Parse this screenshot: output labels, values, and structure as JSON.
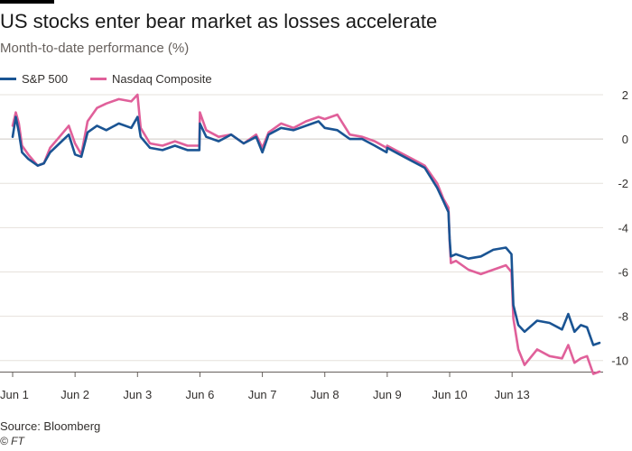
{
  "header": {
    "title": "US stocks enter bear market as losses accelerate",
    "subtitle": "Month-to-date performance (%)"
  },
  "footer": {
    "source": "Source: Bloomberg",
    "copyright": "© FT"
  },
  "colors": {
    "sp500": "#1a5493",
    "nasdaq": "#e0609a",
    "grid": "#e6e1dc",
    "axis_text": "#33302e"
  },
  "chart_data": {
    "type": "line",
    "title": "US stocks enter bear market as losses accelerate",
    "subtitle": "Month-to-date performance (%)",
    "xlabel": "",
    "ylabel": "",
    "ylim": [
      -10.5,
      2
    ],
    "yticks": [
      2,
      0,
      -2,
      -4,
      -6,
      -8,
      -10
    ],
    "grid": true,
    "legend_position": "top-left",
    "xlim": [
      0,
      9.4
    ],
    "xticks": [
      {
        "x": 0,
        "label": "Jun 1"
      },
      {
        "x": 1,
        "label": "Jun 2"
      },
      {
        "x": 2,
        "label": "Jun 3"
      },
      {
        "x": 3,
        "label": "Jun 6"
      },
      {
        "x": 4,
        "label": "Jun 7"
      },
      {
        "x": 5,
        "label": "Jun 8"
      },
      {
        "x": 6,
        "label": "Jun 9"
      },
      {
        "x": 7,
        "label": "Jun 10"
      },
      {
        "x": 8,
        "label": "Jun 13"
      }
    ],
    "series": [
      {
        "name": "S&P 500",
        "color": "#1a5493",
        "x": [
          0,
          0.05,
          0.1,
          0.15,
          0.25,
          0.4,
          0.5,
          0.6,
          0.75,
          0.9,
          1.0,
          1.1,
          1.2,
          1.35,
          1.5,
          1.7,
          1.9,
          2.0,
          2.05,
          2.2,
          2.4,
          2.6,
          2.8,
          2.99,
          3.0,
          3.1,
          3.3,
          3.5,
          3.7,
          3.9,
          4.0,
          4.1,
          4.3,
          4.5,
          4.7,
          4.9,
          5.0,
          5.2,
          5.4,
          5.6,
          5.8,
          5.99,
          6.0,
          6.2,
          6.4,
          6.6,
          6.8,
          6.9,
          6.98,
          7.0,
          7.02,
          7.1,
          7.3,
          7.5,
          7.7,
          7.9,
          7.99,
          8.02,
          8.1,
          8.2,
          8.4,
          8.6,
          8.8,
          8.9,
          9.0,
          9.1,
          9.2,
          9.3,
          9.4
        ],
        "values": [
          0.1,
          1.0,
          0.3,
          -0.6,
          -0.9,
          -1.2,
          -1.1,
          -0.6,
          -0.2,
          0.2,
          -0.7,
          -0.8,
          0.3,
          0.6,
          0.4,
          0.7,
          0.5,
          1.0,
          0.1,
          -0.4,
          -0.5,
          -0.3,
          -0.5,
          -0.5,
          0.7,
          0.1,
          -0.1,
          0.2,
          -0.2,
          0.1,
          -0.6,
          0.2,
          0.5,
          0.4,
          0.6,
          0.8,
          0.5,
          0.4,
          0.0,
          0.0,
          -0.3,
          -0.6,
          -0.4,
          -0.7,
          -1.0,
          -1.3,
          -2.2,
          -2.8,
          -3.3,
          -4.5,
          -5.3,
          -5.2,
          -5.4,
          -5.3,
          -5.0,
          -4.9,
          -5.2,
          -7.5,
          -8.4,
          -8.7,
          -8.2,
          -8.3,
          -8.6,
          -7.9,
          -8.7,
          -8.4,
          -8.5,
          -9.3,
          -9.2
        ]
      },
      {
        "name": "Nasdaq Composite",
        "color": "#e0609a",
        "x": [
          0,
          0.05,
          0.1,
          0.15,
          0.25,
          0.4,
          0.5,
          0.6,
          0.75,
          0.9,
          1.0,
          1.1,
          1.2,
          1.35,
          1.5,
          1.7,
          1.9,
          2.0,
          2.05,
          2.2,
          2.4,
          2.6,
          2.8,
          2.99,
          3.0,
          3.1,
          3.3,
          3.5,
          3.7,
          3.9,
          4.0,
          4.1,
          4.3,
          4.5,
          4.7,
          4.9,
          5.0,
          5.2,
          5.4,
          5.6,
          5.8,
          5.99,
          6.0,
          6.2,
          6.4,
          6.6,
          6.8,
          6.9,
          6.98,
          7.0,
          7.02,
          7.1,
          7.3,
          7.5,
          7.7,
          7.9,
          7.99,
          8.02,
          8.1,
          8.2,
          8.4,
          8.6,
          8.8,
          8.9,
          9.0,
          9.1,
          9.2,
          9.3,
          9.4
        ],
        "values": [
          0.6,
          1.2,
          0.7,
          -0.3,
          -0.7,
          -1.2,
          -1.1,
          -0.4,
          0.1,
          0.6,
          -0.2,
          -0.7,
          0.8,
          1.4,
          1.6,
          1.8,
          1.7,
          2.0,
          0.5,
          -0.2,
          -0.3,
          -0.1,
          -0.3,
          -0.3,
          1.2,
          0.4,
          0.1,
          0.2,
          -0.2,
          0.2,
          -0.4,
          0.3,
          0.7,
          0.5,
          0.8,
          1.0,
          0.9,
          1.1,
          0.2,
          0.1,
          -0.1,
          -0.4,
          -0.3,
          -0.6,
          -0.9,
          -1.2,
          -2.0,
          -2.7,
          -3.1,
          -4.6,
          -5.6,
          -5.5,
          -5.9,
          -6.1,
          -5.9,
          -5.7,
          -6.0,
          -8.1,
          -9.5,
          -10.2,
          -9.5,
          -9.8,
          -9.9,
          -9.3,
          -10.1,
          -9.9,
          -9.8,
          -10.6,
          -10.5
        ]
      }
    ]
  }
}
